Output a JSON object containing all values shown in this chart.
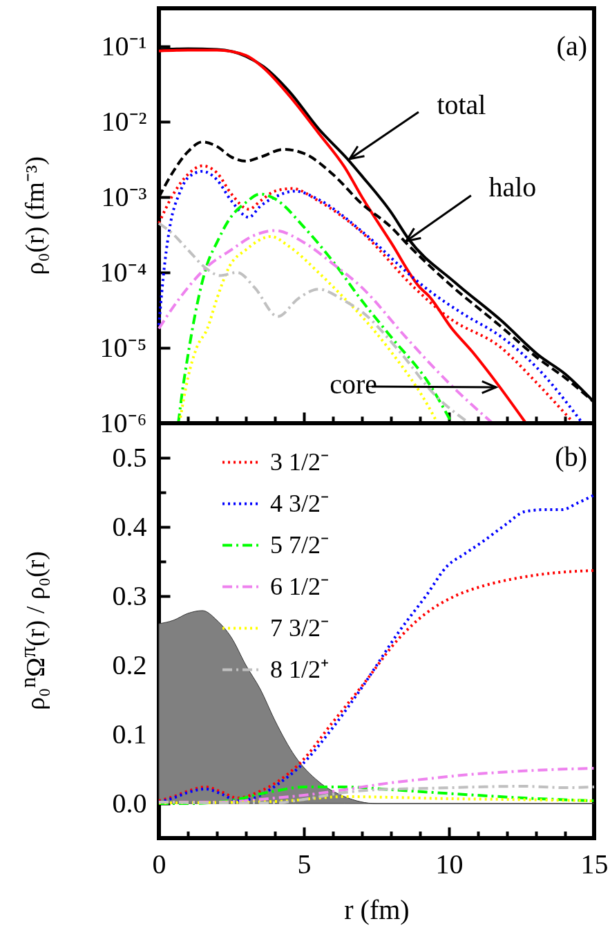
{
  "chart_data": [
    {
      "type": "line",
      "ylabel": "ρ₀(r) (fm⁻³)",
      "log": true,
      "tick_labels": "y",
      "xlim": [
        0,
        15
      ],
      "xticks": [
        0,
        {
          "value": 1,
          "label": null
        },
        {
          "value": 2,
          "label": null
        },
        {
          "value": 3,
          "label": null
        },
        {
          "value": 4,
          "label": null
        },
        5,
        {
          "value": 6,
          "label": null
        },
        {
          "value": 7,
          "label": null
        },
        {
          "value": 8,
          "label": null
        },
        {
          "value": 9,
          "label": null
        },
        10,
        {
          "value": 11,
          "label": null
        },
        {
          "value": 12,
          "label": null
        },
        {
          "value": 13,
          "label": null
        },
        {
          "value": 14,
          "label": null
        },
        15
      ],
      "ylim": [
        1e-06,
        0.32
      ],
      "yticks": [
        {
          "value": 1e-06,
          "label": "10⁻⁶"
        },
        {
          "value": 1e-05,
          "label": "10⁻⁵"
        },
        {
          "value": 0.0001,
          "label": "10⁻⁴"
        },
        {
          "value": 0.001,
          "label": "10⁻³"
        },
        {
          "value": 0.01,
          "label": "10⁻²"
        },
        {
          "value": 0.1,
          "label": "10⁻¹"
        }
      ],
      "annotations": [
        "(a)",
        {
          "text": "total",
          "x": 6.57,
          "y": 0.0032
        },
        {
          "text": "halo",
          "x": 8.52,
          "y": 0.00026
        },
        "core"
      ],
      "series": [
        {
          "color": "#000000",
          "line_style": "solid",
          "x": [
            0,
            1,
            2,
            3,
            3.6,
            4.5,
            5.5,
            6.5,
            7,
            8,
            8.6,
            10.2,
            11.8,
            13.1,
            14,
            15
          ],
          "values": [
            0.091,
            0.093,
            0.091,
            0.074,
            0.054,
            0.025,
            0.0081,
            0.0032,
            0.0019,
            0.00063,
            0.00028,
            7.4e-05,
            2.3e-05,
            7.9e-06,
            4.5e-06,
            1.9e-06
          ]
        },
        {
          "color": "#ff0000",
          "line_style": "solid",
          "x": [
            0,
            1,
            2,
            3,
            3.6,
            4.5,
            5.5,
            6.4,
            7,
            8,
            9,
            9.3,
            10.1,
            10.8,
            11.6,
            12.65
          ],
          "values": [
            0.087,
            0.089,
            0.089,
            0.076,
            0.052,
            0.022,
            0.0071,
            0.0025,
            0.001,
            0.00025,
            6.3e-05,
            4.9e-05,
            1.8e-05,
            8.9e-06,
            3.6e-06,
            1e-06
          ]
        },
        {
          "color": "#000000",
          "line_style": "dashed",
          "x": [
            0,
            0.5,
            1,
            1.5,
            2,
            2.5,
            3,
            3.5,
            4.3,
            5,
            6,
            7,
            8,
            8.6,
            10,
            11.8,
            13.1,
            14,
            15
          ],
          "values": [
            0.001,
            0.0022,
            0.004,
            0.0054,
            0.0047,
            0.0034,
            0.003,
            0.0034,
            0.0043,
            0.0038,
            0.002,
            0.00081,
            0.0004,
            0.00023,
            7.1e-05,
            1.9e-05,
            7.1e-06,
            4e-06,
            1.9e-06
          ]
        },
        {
          "color": "#ff0000",
          "line_style": "dotted",
          "x": [
            0,
            0.5,
            1,
            1.5,
            2,
            2.5,
            3.1,
            3.5,
            4,
            4.6,
            5.5,
            7,
            8.8,
            10,
            11.8,
            13,
            14.3
          ],
          "values": [
            0.00045,
            0.0011,
            0.002,
            0.0026,
            0.0021,
            0.0011,
            0.00069,
            0.00089,
            0.0012,
            0.0013,
            0.00089,
            0.00034,
            6.3e-05,
            2.5e-05,
            1e-05,
            3.5e-06,
            1e-06
          ]
        },
        {
          "color": "#0000ff",
          "line_style": "dotted",
          "x": [
            0,
            0.2,
            0.4,
            0.7,
            1,
            1.5,
            2,
            2.5,
            3.1,
            3.5,
            4,
            4.7,
            5.5,
            7,
            8.8,
            9.3,
            10.5,
            11.8,
            13,
            14.6
          ],
          "values": [
            2e-05,
            0.00013,
            0.00045,
            0.0011,
            0.0018,
            0.0022,
            0.0017,
            0.00089,
            0.00054,
            0.00076,
            0.001,
            0.0012,
            0.00093,
            0.00035,
            8.3e-05,
            5.8e-05,
            2.8e-05,
            1.4e-05,
            5.6e-06,
            1e-06
          ]
        },
        {
          "color": "#00ff00",
          "line_style": "dashdot",
          "x": [
            0.67,
            0.8,
            1,
            1.3,
            1.67,
            2,
            2.43,
            3,
            3.5,
            4,
            5,
            6,
            7,
            8,
            9.3,
            10.1
          ],
          "values": [
            1e-06,
            2.5e-06,
            7.9e-06,
            3.5e-05,
            0.00013,
            0.00025,
            0.00051,
            0.00085,
            0.0011,
            0.00095,
            0.0004,
            0.00014,
            4.2e-05,
            1.4e-05,
            3.4e-06,
            1e-06
          ]
        },
        {
          "color": "#ee82ee",
          "line_style": "dashdot",
          "x": [
            0,
            0.5,
            1,
            1.67,
            2.5,
            3.2,
            4,
            5,
            6,
            7,
            8.5,
            10,
            11.5
          ],
          "values": [
            1.8e-05,
            3.5e-05,
            6.3e-05,
            0.00012,
            0.0002,
            0.0003,
            0.00036,
            0.00025,
            0.00013,
            6.3e-05,
            1.4e-05,
            3.4e-06,
            1e-06
          ]
        },
        {
          "color": "#ffff00",
          "line_style": "dotted",
          "x": [
            0.71,
            1,
            1.3,
            1.67,
            2,
            2.43,
            3,
            3.86,
            4.5,
            5.5,
            6.43,
            7,
            8,
            9.4,
            9.6
          ],
          "values": [
            1e-06,
            4e-06,
            1e-05,
            1.8e-05,
            4.5e-05,
            0.00012,
            0.0002,
            0.0003,
            0.00022,
            0.0001,
            4.4e-05,
            2.6e-05,
            8.9e-06,
            1.4e-06,
            1e-06
          ]
        },
        {
          "color": "#c0c0c0",
          "line_style": "dashdot",
          "x": [
            0,
            0.5,
            1,
            1.67,
            2.1,
            2.7,
            3.3,
            4.1,
            4.8,
            5.5,
            6.4,
            7,
            8.3,
            9.5,
            10.7
          ],
          "values": [
            0.00045,
            0.00032,
            0.0002,
            0.00011,
            9.1e-05,
            0.0001,
            6.3e-05,
            2.6e-05,
            4.5e-05,
            6e-05,
            4.2e-05,
            3e-05,
            8.9e-06,
            2.4e-06,
            1e-06
          ]
        }
      ]
    },
    {
      "type": "line",
      "xlabel": "r (fm)",
      "ylabel": "ρ₀$^{n}$Ω$^{π}$(r) / ρ₀(r)",
      "legend": "top left",
      "xlim": [
        0,
        15
      ],
      "xticks": [
        0,
        {
          "value": 1,
          "label": null
        },
        {
          "value": 2,
          "label": null
        },
        {
          "value": 3,
          "label": null
        },
        {
          "value": 4,
          "label": null
        },
        5,
        {
          "value": 6,
          "label": null
        },
        {
          "value": 7,
          "label": null
        },
        {
          "value": 8,
          "label": null
        },
        {
          "value": 9,
          "label": null
        },
        10,
        {
          "value": 11,
          "label": null
        },
        {
          "value": 12,
          "label": null
        },
        {
          "value": 13,
          "label": null
        },
        {
          "value": 14,
          "label": null
        },
        15
      ],
      "ylim": [
        -0.05,
        0.55
      ],
      "yticks": [
        {
          "value": 0,
          "label": "0.0"
        },
        {
          "value": 0.05,
          "label": null
        },
        0.1,
        {
          "value": 0.15,
          "label": null
        },
        0.2,
        {
          "value": 0.25,
          "label": null
        },
        0.3,
        {
          "value": 0.35,
          "label": null
        },
        0.4,
        {
          "value": 0.45,
          "label": null
        },
        0.5
      ],
      "annotations": [
        "(b)"
      ],
      "series": [
        {
          "type": "area",
          "color": "#808080",
          "x": [
            0,
            0.5,
            1,
            1.5,
            2,
            2.5,
            3,
            3.5,
            4,
            4.7,
            5.5,
            6.4,
            7.5,
            15
          ],
          "values": [
            0.26,
            0.265,
            0.275,
            0.279,
            0.265,
            0.24,
            0.2,
            0.165,
            0.12,
            0.068,
            0.032,
            0.01,
            0,
            0
          ]
        },
        {
          "name": "3 1/2⁻",
          "color": "#ff0000",
          "line_style": "dotted",
          "x": [
            0,
            0.5,
            1,
            1.6,
            2.2,
            2.7,
            3.5,
            4.1,
            4.9,
            6,
            7,
            8.3,
            9.2,
            10.2,
            11.2,
            12.1,
            13.5,
            15
          ],
          "values": [
            0.004,
            0.01,
            0.018,
            0.024,
            0.016,
            0.008,
            0.018,
            0.032,
            0.06,
            0.118,
            0.17,
            0.24,
            0.275,
            0.3,
            0.315,
            0.324,
            0.333,
            0.337
          ]
        },
        {
          "name": "4 3/2⁻",
          "color": "#0000ff",
          "line_style": "dotted",
          "x": [
            0,
            0.5,
            1,
            1.6,
            2.2,
            2.7,
            3.5,
            4.1,
            4.9,
            6,
            7,
            8.3,
            9.2,
            9.95,
            10.5,
            11.2,
            12,
            12.6,
            13.3,
            13.9,
            14.4,
            15
          ],
          "values": [
            0.002,
            0.008,
            0.016,
            0.021,
            0.013,
            0.004,
            0.012,
            0.028,
            0.055,
            0.11,
            0.168,
            0.25,
            0.3,
            0.344,
            0.36,
            0.38,
            0.405,
            0.422,
            0.425,
            0.425,
            0.434,
            0.446
          ]
        },
        {
          "name": "5 7/2⁻",
          "color": "#00ff00",
          "line_style": "dashdot",
          "x": [
            0,
            1,
            2,
            2.7,
            3.5,
            4,
            5,
            6.4,
            8,
            10.2,
            12.6,
            15
          ],
          "values": [
            0,
            0,
            0.002,
            0.006,
            0.014,
            0.018,
            0.024,
            0.024,
            0.02,
            0.014,
            0.008,
            0.004
          ]
        },
        {
          "name": "6 1/2⁻",
          "color": "#ee82ee",
          "line_style": "dashdot",
          "x": [
            0,
            2,
            3,
            4,
            5,
            6.4,
            8,
            9.3,
            10.7,
            12.1,
            13.5,
            15
          ],
          "values": [
            0.002,
            0.002,
            0.004,
            0.008,
            0.012,
            0.02,
            0.03,
            0.036,
            0.042,
            0.046,
            0.049,
            0.051
          ]
        },
        {
          "name": "7 3/2⁻",
          "color": "#ffff00",
          "line_style": "dotted",
          "x": [
            0,
            3,
            4.5,
            5.5,
            6.4,
            8,
            10,
            12,
            15
          ],
          "values": [
            0.001,
            0.002,
            0.004,
            0.008,
            0.01,
            0.009,
            0.007,
            0.006,
            0.004
          ]
        },
        {
          "name": "8 1/2⁺",
          "color": "#c0c0c0",
          "line_style": "dashdot",
          "x": [
            0,
            2,
            4,
            5,
            6.4,
            7.5,
            9.3,
            11,
            12.5,
            14,
            15
          ],
          "values": [
            0.002,
            0.001,
            0.001,
            0.006,
            0.016,
            0.02,
            0.022,
            0.024,
            0.025,
            0.023,
            0.024
          ]
        }
      ]
    }
  ]
}
